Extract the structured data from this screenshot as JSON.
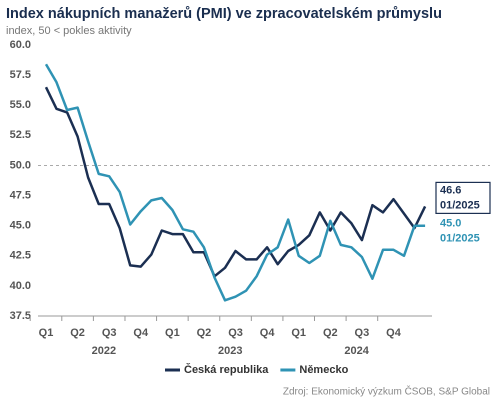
{
  "chart_data": {
    "type": "line",
    "title": "Index nákupních manažerů (PMI) ve zpracovatelském průmyslu",
    "subtitle": "index, 50 < pokles aktivity",
    "source": "Zdroj: Ekonomický výzkum ČSOB, S&P Global",
    "categories": [
      "Q1",
      null,
      null,
      "Q2",
      null,
      null,
      "Q3",
      null,
      null,
      "Q4",
      null,
      null,
      "Q1",
      null,
      null,
      "Q2",
      null,
      null,
      "Q3",
      null,
      null,
      "Q4",
      null,
      null,
      "Q1",
      null,
      null,
      "Q2",
      null,
      null,
      "Q3",
      null,
      null,
      "Q4",
      null,
      null,
      null
    ],
    "years": [
      "2022",
      "2023",
      "2024"
    ],
    "series": [
      {
        "name": "Česká republika",
        "color": "#1b2f52",
        "end_label": "46.6",
        "end_date": "01/2025",
        "label_box": true,
        "values": [
          56.5,
          54.7,
          54.4,
          52.4,
          49.0,
          46.8,
          46.8,
          44.8,
          41.7,
          41.6,
          42.6,
          44.6,
          44.3,
          44.3,
          42.8,
          42.8,
          40.8,
          41.5,
          42.9,
          42.2,
          42.2,
          43.2,
          41.8,
          42.9,
          43.4,
          44.2,
          46.1,
          44.6,
          46.1,
          45.2,
          43.8,
          46.7,
          46.1,
          47.2,
          46.0,
          44.8,
          46.6
        ]
      },
      {
        "name": "Německo",
        "color": "#2f93b4",
        "end_label": "45.0",
        "end_date": "01/2025",
        "label_box": false,
        "values": [
          58.4,
          56.9,
          54.6,
          54.8,
          52.0,
          49.3,
          49.1,
          47.8,
          45.1,
          46.2,
          47.1,
          47.3,
          46.3,
          44.7,
          44.5,
          43.2,
          40.7,
          38.8,
          39.1,
          39.6,
          40.8,
          42.6,
          43.2,
          45.5,
          42.5,
          41.9,
          42.5,
          45.4,
          43.4,
          43.2,
          42.4,
          40.6,
          43.0,
          43.0,
          42.5,
          45.0,
          45.0
        ]
      }
    ],
    "ylim": [
      37.5,
      60
    ],
    "yticks": [
      37.5,
      {
        "value": 40,
        "label": "40.0"
      },
      42.5,
      {
        "value": 45,
        "label": "45.0"
      },
      47.5,
      {
        "value": 50,
        "label": "50.0"
      },
      52.5,
      {
        "value": 55,
        "label": "55.0"
      },
      57.5,
      {
        "value": 60,
        "label": "60.0"
      }
    ],
    "reference_line": 50,
    "grid": false,
    "legend": "bottom"
  }
}
